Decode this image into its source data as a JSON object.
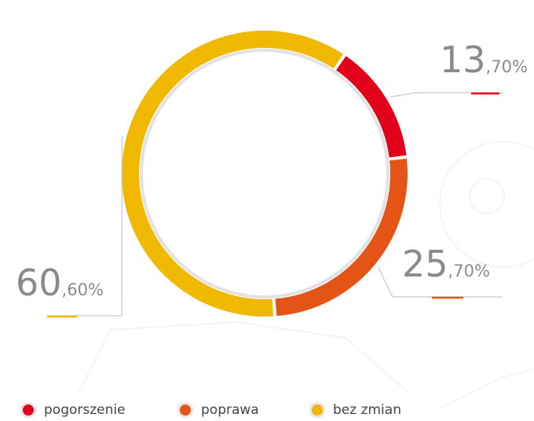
{
  "chart_data": {
    "type": "donut",
    "categories": [
      "pogorszenie",
      "poprawa",
      "bez zmian"
    ],
    "values": [
      13.7,
      25.7,
      60.6
    ],
    "value_labels": [
      "13,70%",
      "25,70%",
      "60,60%"
    ],
    "colors": [
      "#e2001a",
      "#e55417",
      "#f0b800"
    ],
    "legend": "bottom-left"
  }
}
